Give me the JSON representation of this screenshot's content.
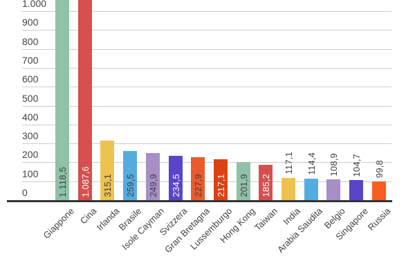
{
  "chart_data": {
    "type": "bar",
    "title": "",
    "xlabel": "",
    "ylabel": "",
    "legend": "none",
    "grid": true,
    "ylim": [
      0,
      1062
    ],
    "y_tick_labels": [
      "1.000",
      "900",
      "800",
      "700",
      "600",
      "500",
      "400",
      "300",
      "200",
      "100",
      "0"
    ],
    "y_tick_values": [
      1000,
      900,
      800,
      700,
      600,
      500,
      400,
      300,
      200,
      100,
      0
    ],
    "categories": [
      "Giappone",
      "Cina",
      "Irlanda",
      "Brasile",
      "Isole Cayman",
      "Svizzera",
      "Gran Bretagna",
      "Lussemburgo",
      "Hong Kong",
      "Taiwan",
      "India",
      "Arabia Saudita",
      "Belgio",
      "Singapore",
      "Russia"
    ],
    "values": [
      1118.5,
      1087.6,
      315.1,
      259.5,
      249.9,
      234.5,
      227.9,
      217.1,
      201.9,
      185.2,
      117.1,
      114.4,
      108.9,
      104.7,
      99.8
    ],
    "value_labels": [
      "1.118,5",
      "1.087,6",
      "315,1",
      "259,5",
      "249,9",
      "234,5",
      "227,9",
      "217,1",
      "201,9",
      "185,2",
      "117,1",
      "114,4",
      "108,9",
      "104,7",
      "99,8"
    ],
    "bar_colors": [
      "#8fc2a6",
      "#d5504e",
      "#eec250",
      "#55acdf",
      "#a78fc6",
      "#5a45c9",
      "#ec5a2c",
      "#dc4114",
      "#8fc2a6",
      "#d5504e",
      "#eec250",
      "#55acdf",
      "#a78fc6",
      "#5a45c9",
      "#f85c20"
    ],
    "value_label_inside": [
      true,
      true,
      true,
      true,
      true,
      true,
      true,
      true,
      true,
      true,
      false,
      false,
      false,
      false,
      false
    ],
    "value_label_colors": [
      "#3f3f3f",
      "#ffffff",
      "#3f3f3f",
      "#3f3f3f",
      "#3f3f3f",
      "#ffffff",
      "#3f3f3f",
      "#ffffff",
      "#3f3f3f",
      "#ffffff",
      "#424242",
      "#424242",
      "#424242",
      "#424242",
      "#424242"
    ],
    "colors": {
      "background": "#ffffff",
      "gridline": "#cccccc",
      "axis_line": "#333333",
      "tick_text": "#424242"
    }
  }
}
